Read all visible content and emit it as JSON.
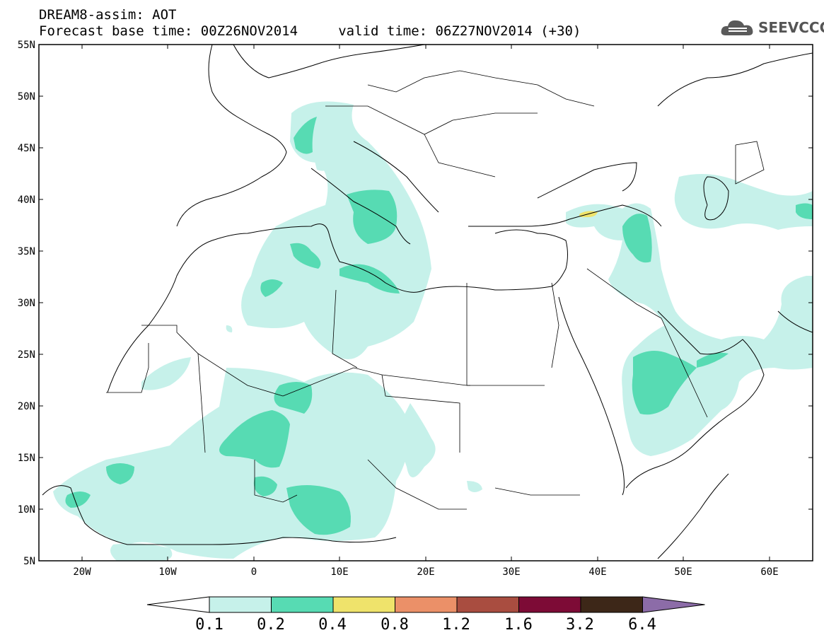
{
  "title": {
    "line1": "DREAM8-assim: AOT",
    "line2": "Forecast base time: 00Z26NOV2014     valid time: 06Z27NOV2014 (+30)"
  },
  "logo": {
    "text": "SEEVCCC",
    "icon": "cloud-logo-icon",
    "color": "#555555"
  },
  "map": {
    "lon_range": [
      -25,
      65
    ],
    "lat_range": [
      5,
      55
    ],
    "lat_labels": [
      "55N",
      "50N",
      "45N",
      "40N",
      "35N",
      "30N",
      "25N",
      "20N",
      "15N",
      "10N",
      "5N"
    ],
    "lon_labels": [
      "20W",
      "10W",
      "0",
      "10E",
      "20E",
      "30E",
      "40E",
      "50E",
      "60E"
    ]
  },
  "colorbar": {
    "levels": [
      "0.1",
      "0.2",
      "0.4",
      "0.8",
      "1.2",
      "1.6",
      "3.2",
      "6.4"
    ],
    "colors": [
      "#ffffff",
      "#c6f1ea",
      "#57dbb3",
      "#efe36b",
      "#eb9068",
      "#a94d40",
      "#7d0b36",
      "#3d2718",
      "#8c6ca8"
    ]
  }
}
